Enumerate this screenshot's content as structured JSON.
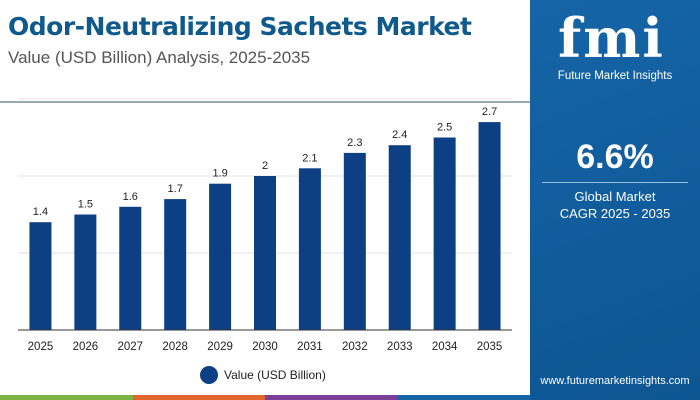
{
  "header": {
    "title": "Odor-Neutralizing Sachets Market",
    "subtitle": "Value (USD Billion) Analysis, 2025-2035"
  },
  "sidebar": {
    "logo_text": "fmi",
    "logo_caption": "Future Market Insights",
    "cagr_value": "6.6%",
    "cagr_label_1": "Global Market",
    "cagr_label_2": "CAGR 2025 - 2035",
    "url": "www.futuremarketinsights.com"
  },
  "colors": {
    "bar": "#0d3f85",
    "panel": "#1565a6",
    "stripe": [
      "#7cb342",
      "#e2652b",
      "#7b3f98",
      "#1565a6"
    ]
  },
  "chart_data": {
    "type": "bar",
    "categories": [
      "2025",
      "2026",
      "2027",
      "2028",
      "2029",
      "2030",
      "2031",
      "2032",
      "2033",
      "2034",
      "2035"
    ],
    "series": [
      {
        "name": "Value (USD Billion)",
        "values": [
          1.4,
          1.5,
          1.6,
          1.7,
          1.9,
          2,
          2.1,
          2.3,
          2.4,
          2.5,
          2.7
        ]
      }
    ],
    "ylim": [
      0,
      3
    ],
    "grid": true,
    "legend": "bottom",
    "xlabel": "",
    "ylabel": ""
  }
}
